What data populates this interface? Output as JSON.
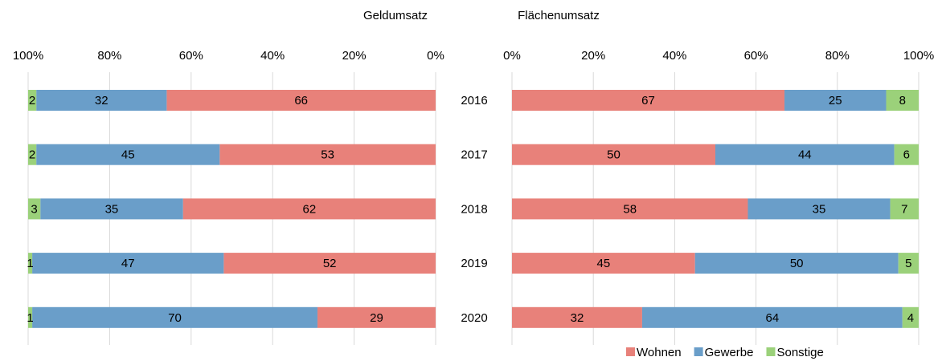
{
  "chart_data": [
    {
      "type": "bar",
      "stacked": true,
      "orientation": "horizontal",
      "title": "Geldumsatz",
      "series": [
        {
          "color": "#e8817a",
          "values": [
            66,
            53,
            62,
            52,
            29
          ]
        },
        {
          "color": "#6a9ec9",
          "values": [
            32,
            45,
            35,
            47,
            70
          ]
        },
        {
          "color": "#9bd17a",
          "values": [
            2,
            2,
            3,
            1,
            1
          ]
        }
      ],
      "xlim": [
        100,
        0
      ],
      "xticks": [
        {
          "value": 100,
          "label": "100%"
        },
        {
          "value": 80,
          "label": "80%"
        },
        {
          "value": 60,
          "label": "60%"
        },
        {
          "value": 40,
          "label": "40%"
        },
        {
          "value": 20,
          "label": "20%"
        },
        {
          "value": 0,
          "label": "0%"
        }
      ],
      "grid": true
    },
    {
      "type": "bar",
      "stacked": true,
      "orientation": "horizontal",
      "title": "Flächenumsatz",
      "categories": [
        "2016",
        "2017",
        "2018",
        "2019",
        "2020"
      ],
      "series": [
        {
          "name": "Wohnen",
          "color": "#e8817a",
          "values": [
            67,
            50,
            58,
            45,
            32
          ]
        },
        {
          "name": "Gewerbe",
          "color": "#6a9ec9",
          "values": [
            25,
            44,
            35,
            50,
            64
          ]
        },
        {
          "name": "Sonstige",
          "color": "#9bd17a",
          "values": [
            8,
            6,
            7,
            5,
            4
          ]
        }
      ],
      "xlim": [
        0,
        100
      ],
      "xticks": [
        {
          "value": 0,
          "label": "0%"
        },
        {
          "value": 20,
          "label": "20%"
        },
        {
          "value": 40,
          "label": "40%"
        },
        {
          "value": 60,
          "label": "60%"
        },
        {
          "value": 80,
          "label": "80%"
        },
        {
          "value": 100,
          "label": "100%"
        }
      ],
      "grid": true,
      "legend": "bottom"
    }
  ]
}
